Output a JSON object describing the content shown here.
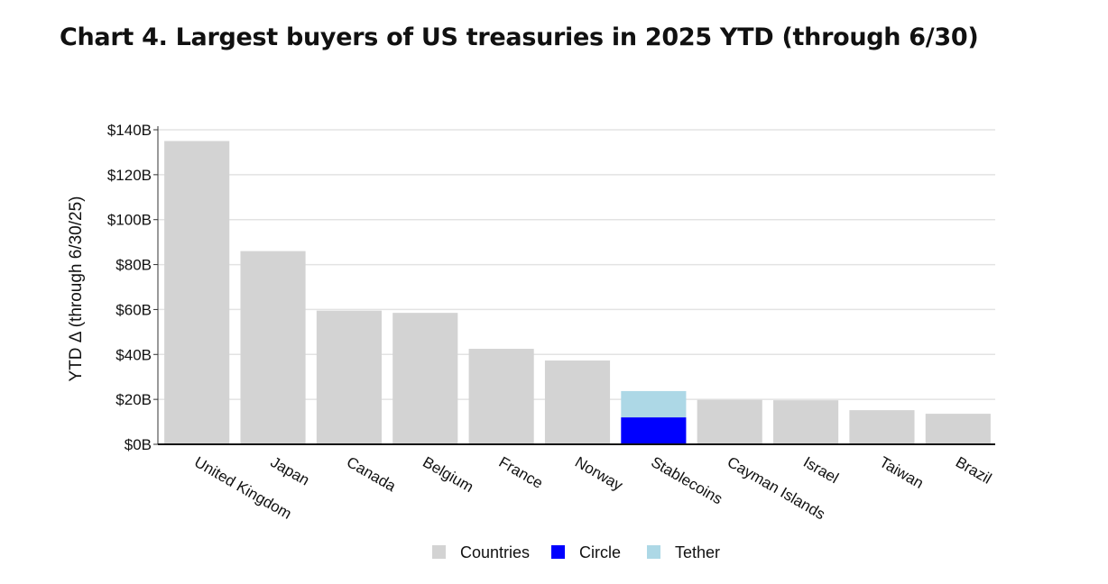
{
  "chart_data": {
    "type": "bar",
    "stacked": true,
    "title": "Chart 4. Largest buyers of US treasuries in 2025 YTD (through 6/30)",
    "xlabel": "",
    "ylabel": "YTD Δ (through 6/30/25)",
    "ylim": [
      0,
      140
    ],
    "yticks": [
      0,
      20,
      40,
      60,
      80,
      100,
      120,
      140
    ],
    "ytick_labels": [
      "$0B",
      "$20B",
      "$40B",
      "$60B",
      "$80B",
      "$100B",
      "$120B",
      "$140B"
    ],
    "grid": true,
    "legend_position": "bottom",
    "categories": [
      "United Kingdom",
      "Japan",
      "Canada",
      "Belgium",
      "France",
      "Norway",
      "Stablecoins",
      "Cayman Islands",
      "Israel",
      "Taiwan",
      "Brazil"
    ],
    "series": [
      {
        "name": "Countries",
        "color": "#d3d3d3",
        "values": [
          135,
          86,
          59.5,
          58.5,
          42.5,
          37.3,
          0,
          19.8,
          19.6,
          15.2,
          13.6
        ]
      },
      {
        "name": "Circle",
        "color": "#0000ff",
        "values": [
          0,
          0,
          0,
          0,
          0,
          0,
          12,
          0,
          0,
          0,
          0
        ]
      },
      {
        "name": "Tether",
        "color": "#add8e6",
        "values": [
          0,
          0,
          0,
          0,
          0,
          0,
          11.7,
          0,
          0,
          0,
          0
        ]
      }
    ]
  }
}
